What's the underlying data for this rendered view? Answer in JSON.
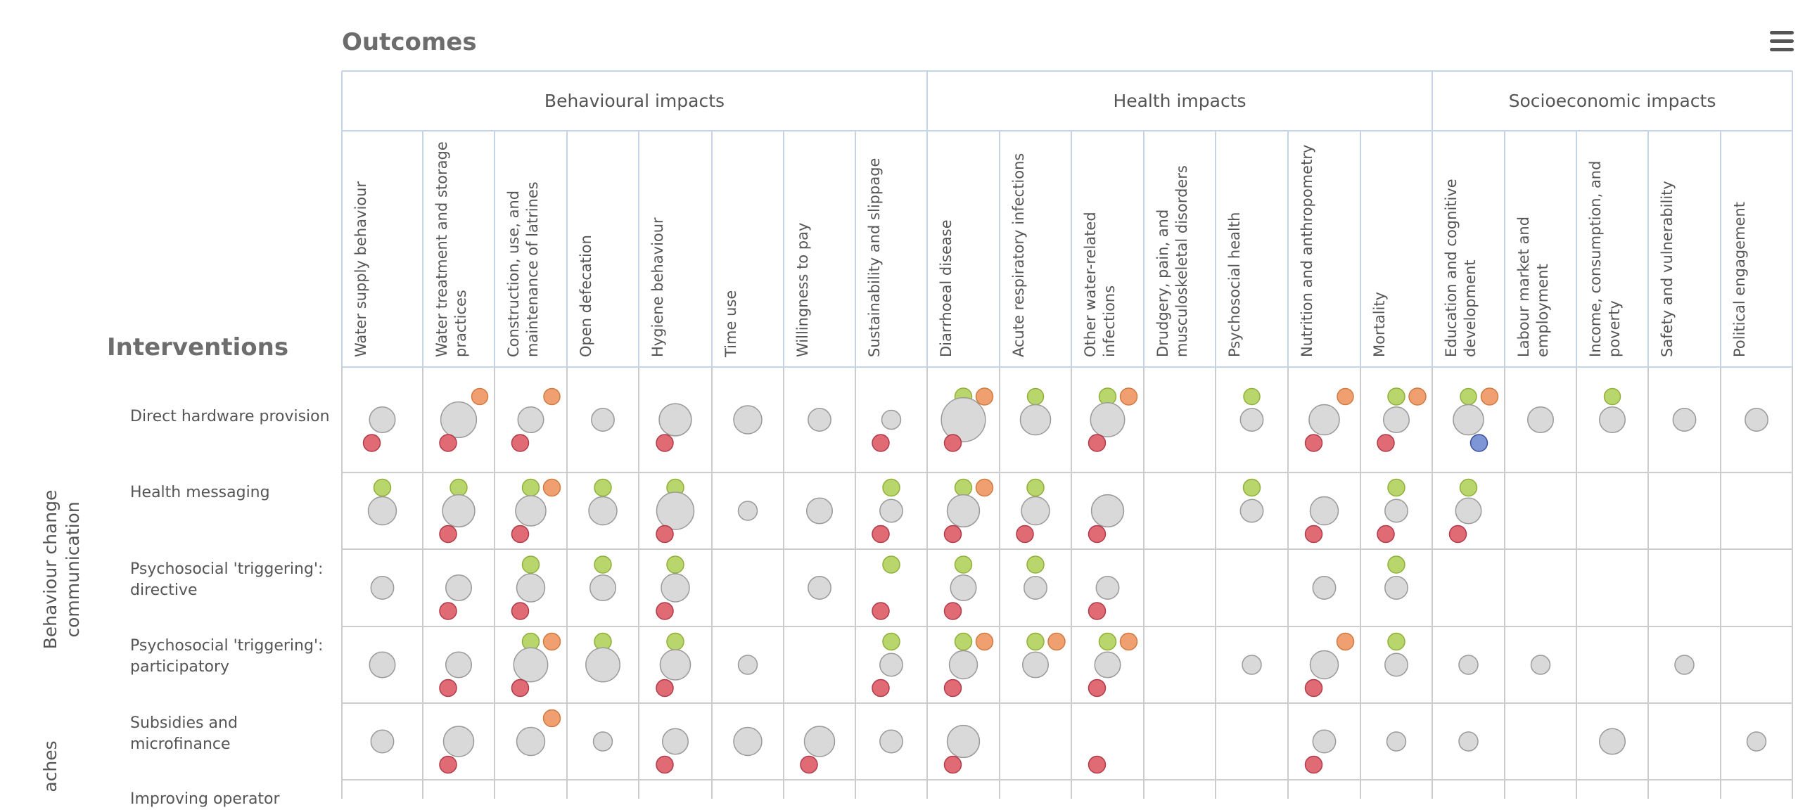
{
  "titles": {
    "outcomes": "Outcomes",
    "interventions": "Interventions"
  },
  "menu": {
    "icon": "hamburger-menu-icon"
  },
  "outcome_groups": [
    {
      "label": "Behavioural impacts"
    },
    {
      "label": "Health impacts"
    },
    {
      "label": "Socioeconomic impacts"
    }
  ],
  "outcome_columns": [
    {
      "lines": [
        "Water supply behaviour"
      ]
    },
    {
      "lines": [
        "Water treatment and storage",
        "practices"
      ]
    },
    {
      "lines": [
        "Construction, use, and",
        "maintenance of latrines"
      ]
    },
    {
      "lines": [
        "Open defecation"
      ]
    },
    {
      "lines": [
        "Hygiene behaviour"
      ]
    },
    {
      "lines": [
        "Time use"
      ]
    },
    {
      "lines": [
        "Willingness to pay"
      ]
    },
    {
      "lines": [
        "Sustainability and slippage"
      ]
    },
    {
      "lines": [
        "Diarrhoeal disease"
      ]
    },
    {
      "lines": [
        "Acute respiratory infections"
      ]
    },
    {
      "lines": [
        "Other water-related",
        "infections"
      ]
    },
    {
      "lines": [
        "Drudgery, pain, and",
        "musculoskeletal disorders"
      ]
    },
    {
      "lines": [
        "Psychosocial health"
      ]
    },
    {
      "lines": [
        "Nutrition and anthropometry"
      ]
    },
    {
      "lines": [
        "Mortality"
      ]
    },
    {
      "lines": [
        "Education and cognitive",
        "development"
      ]
    },
    {
      "lines": [
        "Labour market and employment"
      ]
    },
    {
      "lines": [
        "Income, consumption, and",
        "poverty"
      ]
    },
    {
      "lines": [
        "Safety and vulnerability"
      ]
    },
    {
      "lines": [
        "Political engagement"
      ]
    }
  ],
  "intervention_groups": [
    {
      "label": "Behaviour change communication"
    },
    {
      "label": "aches"
    }
  ],
  "interventions": [
    {
      "lines": [
        "Direct hardware provision"
      ]
    },
    {
      "lines": [
        "Health messaging"
      ]
    },
    {
      "lines": [
        "Psychosocial 'triggering':",
        "directive"
      ]
    },
    {
      "lines": [
        "Psychosocial 'triggering':",
        "participatory"
      ]
    },
    {
      "lines": [
        "Subsidies and microfinance"
      ]
    },
    {
      "lines": [
        "Improving operator"
      ]
    }
  ],
  "legend_colors": {
    "green": "#b8d66b",
    "orange": "#f0a070",
    "grey": "#d9d9d9",
    "red": "#e06b75",
    "blue": "#7f96d6"
  },
  "chart_data": {
    "type": "bubble-matrix",
    "encoding": "cell[column] = [green, orange, grey, red, blue] study counts; 0 = no bubble",
    "rows": [
      {
        "cells": [
          [
            0,
            0,
            3,
            2,
            0
          ],
          [
            0,
            1,
            8,
            2,
            0
          ],
          [
            0,
            1,
            3,
            2,
            0
          ],
          [
            0,
            0,
            2,
            0,
            0
          ],
          [
            0,
            0,
            6,
            2,
            0
          ],
          [
            0,
            0,
            4,
            0,
            0
          ],
          [
            0,
            0,
            2,
            0,
            0
          ],
          [
            0,
            0,
            1,
            2,
            0
          ],
          [
            4,
            5,
            14,
            4,
            0
          ],
          [
            1,
            0,
            5,
            0,
            0
          ],
          [
            2,
            3,
            7,
            4,
            0
          ],
          [
            0,
            0,
            0,
            0,
            0
          ],
          [
            1,
            0,
            2,
            0,
            0
          ],
          [
            0,
            1,
            5,
            2,
            0
          ],
          [
            3,
            2,
            3,
            2,
            0
          ],
          [
            1,
            2,
            5,
            0,
            2
          ],
          [
            0,
            0,
            3,
            0,
            0
          ],
          [
            1,
            0,
            3,
            0,
            0
          ],
          [
            0,
            0,
            2,
            0,
            0
          ],
          [
            0,
            0,
            2,
            0,
            0
          ]
        ]
      },
      {
        "cells": [
          [
            2,
            0,
            4,
            0,
            0
          ],
          [
            2,
            0,
            6,
            3,
            0
          ],
          [
            2,
            2,
            5,
            2,
            0
          ],
          [
            2,
            0,
            4,
            0,
            0
          ],
          [
            2,
            0,
            9,
            4,
            0
          ],
          [
            0,
            0,
            1,
            0,
            0
          ],
          [
            0,
            0,
            3,
            0,
            0
          ],
          [
            3,
            0,
            2,
            2,
            0
          ],
          [
            2,
            2,
            6,
            4,
            0
          ],
          [
            3,
            0,
            4,
            2,
            0
          ],
          [
            0,
            0,
            6,
            4,
            0
          ],
          [
            0,
            0,
            0,
            0,
            0
          ],
          [
            2,
            0,
            2,
            0,
            0
          ],
          [
            0,
            0,
            4,
            2,
            0
          ],
          [
            2,
            0,
            2,
            2,
            0
          ],
          [
            2,
            0,
            3,
            2,
            0
          ],
          [
            0,
            0,
            0,
            0,
            0
          ],
          [
            0,
            0,
            0,
            0,
            0
          ],
          [
            0,
            0,
            0,
            0,
            0
          ],
          [
            0,
            0,
            0,
            0,
            0
          ]
        ]
      },
      {
        "cells": [
          [
            0,
            0,
            2,
            0,
            0
          ],
          [
            0,
            0,
            3,
            4,
            0
          ],
          [
            2,
            0,
            4,
            2,
            0
          ],
          [
            2,
            0,
            3,
            0,
            0
          ],
          [
            2,
            0,
            4,
            3,
            0
          ],
          [
            0,
            0,
            0,
            0,
            0
          ],
          [
            0,
            0,
            2,
            0,
            0
          ],
          [
            2,
            0,
            0,
            2,
            0
          ],
          [
            2,
            0,
            3,
            2,
            0
          ],
          [
            2,
            0,
            2,
            0,
            0
          ],
          [
            0,
            0,
            2,
            2,
            0
          ],
          [
            0,
            0,
            0,
            0,
            0
          ],
          [
            0,
            0,
            0,
            0,
            0
          ],
          [
            0,
            0,
            2,
            0,
            0
          ],
          [
            2,
            0,
            2,
            0,
            0
          ],
          [
            0,
            0,
            0,
            0,
            0
          ],
          [
            0,
            0,
            0,
            0,
            0
          ],
          [
            0,
            0,
            0,
            0,
            0
          ],
          [
            0,
            0,
            0,
            0,
            0
          ],
          [
            0,
            0,
            0,
            0,
            0
          ]
        ]
      },
      {
        "cells": [
          [
            0,
            0,
            3,
            0,
            0
          ],
          [
            0,
            0,
            3,
            2,
            0
          ],
          [
            2,
            2,
            7,
            2,
            0
          ],
          [
            2,
            0,
            7,
            0,
            0
          ],
          [
            3,
            0,
            5,
            2,
            0
          ],
          [
            0,
            0,
            1,
            0,
            0
          ],
          [
            0,
            0,
            0,
            0,
            0
          ],
          [
            2,
            0,
            2,
            2,
            0
          ],
          [
            2,
            2,
            4,
            3,
            0
          ],
          [
            2,
            2,
            3,
            0,
            0
          ],
          [
            2,
            2,
            3,
            2,
            0
          ],
          [
            0,
            0,
            0,
            0,
            0
          ],
          [
            0,
            0,
            1,
            0,
            0
          ],
          [
            0,
            2,
            4,
            2,
            0
          ],
          [
            2,
            0,
            2,
            0,
            0
          ],
          [
            0,
            0,
            1,
            0,
            0
          ],
          [
            0,
            0,
            1,
            0,
            0
          ],
          [
            0,
            0,
            0,
            0,
            0
          ],
          [
            0,
            0,
            1,
            0,
            0
          ],
          [
            0,
            0,
            0,
            0,
            0
          ]
        ]
      },
      {
        "cells": [
          [
            0,
            0,
            2,
            0,
            0
          ],
          [
            0,
            0,
            5,
            2,
            0
          ],
          [
            0,
            2,
            4,
            0,
            0
          ],
          [
            0,
            0,
            1,
            0,
            0
          ],
          [
            0,
            0,
            3,
            2,
            0
          ],
          [
            0,
            0,
            4,
            0,
            0
          ],
          [
            0,
            0,
            5,
            2,
            0
          ],
          [
            0,
            0,
            2,
            0,
            0
          ],
          [
            0,
            0,
            6,
            2,
            0
          ],
          [
            0,
            0,
            0,
            0,
            0
          ],
          [
            0,
            0,
            0,
            2,
            0
          ],
          [
            0,
            0,
            0,
            0,
            0
          ],
          [
            0,
            0,
            0,
            0,
            0
          ],
          [
            0,
            0,
            2,
            2,
            0
          ],
          [
            0,
            0,
            1,
            0,
            0
          ],
          [
            0,
            0,
            1,
            0,
            0
          ],
          [
            0,
            0,
            0,
            0,
            0
          ],
          [
            0,
            0,
            3,
            0,
            0
          ],
          [
            0,
            0,
            0,
            0,
            0
          ],
          [
            0,
            0,
            1,
            0,
            0
          ]
        ]
      },
      {
        "cells": []
      }
    ]
  }
}
